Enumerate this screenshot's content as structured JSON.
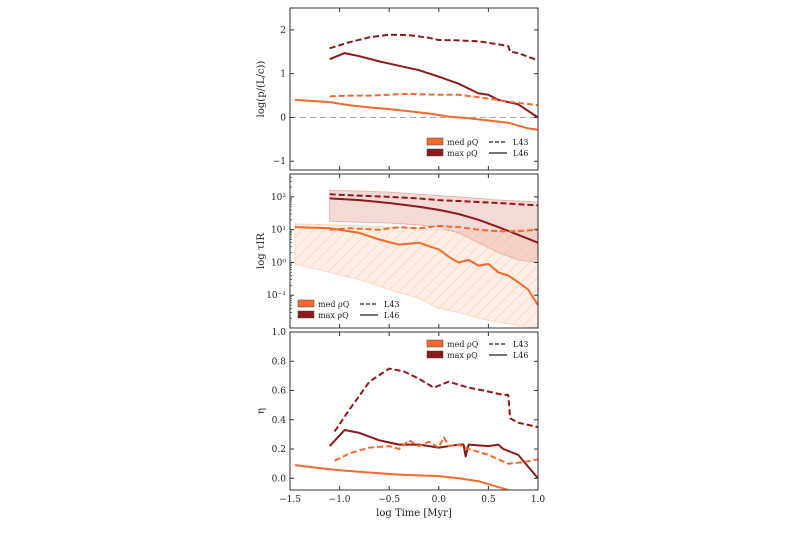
{
  "chart_data": [
    {
      "type": "line",
      "ylabel": "log(p/(L/c))",
      "xlim": [
        -1.5,
        1.0
      ],
      "ylim": [
        -1.2,
        2.5
      ],
      "y_scale": "linear",
      "yticks": [
        -1,
        0,
        1,
        2
      ],
      "reference_line": {
        "y": 0,
        "style": "dashed",
        "color": "#aaaaaa"
      },
      "legend": {
        "placement": "lower-right",
        "color_entries": [
          {
            "label": "med ρQ",
            "color": "#f46a2e"
          },
          {
            "label": "max ρQ",
            "color": "#8b1a1a"
          }
        ],
        "style_entries": [
          {
            "label": "L43",
            "style": "dashed"
          },
          {
            "label": "L46",
            "style": "solid"
          }
        ]
      },
      "series": [
        {
          "color": "#8b1a1a",
          "style": "dashed",
          "x": [
            -1.1,
            -0.9,
            -0.7,
            -0.5,
            -0.3,
            -0.1,
            0.0,
            0.2,
            0.4,
            0.6,
            0.7,
            0.72,
            0.8,
            1.0
          ],
          "y": [
            1.58,
            1.72,
            1.83,
            1.89,
            1.88,
            1.82,
            1.77,
            1.76,
            1.74,
            1.67,
            1.63,
            1.5,
            1.47,
            1.3
          ]
        },
        {
          "color": "#8b1a1a",
          "style": "solid",
          "x": [
            -1.1,
            -0.95,
            -0.8,
            -0.6,
            -0.4,
            -0.2,
            0.0,
            0.2,
            0.4,
            0.5,
            0.6,
            0.8,
            1.0
          ],
          "y": [
            1.33,
            1.47,
            1.4,
            1.28,
            1.18,
            1.08,
            0.93,
            0.77,
            0.55,
            0.52,
            0.4,
            0.3,
            0.0
          ]
        },
        {
          "color": "#f46a2e",
          "style": "dashed",
          "x": [
            -1.1,
            -0.9,
            -0.7,
            -0.5,
            -0.3,
            -0.2,
            0.0,
            0.2,
            0.4,
            0.6,
            0.7,
            1.0
          ],
          "y": [
            0.48,
            0.5,
            0.5,
            0.52,
            0.54,
            0.53,
            0.52,
            0.52,
            0.46,
            0.4,
            0.36,
            0.28
          ]
        },
        {
          "color": "#f46a2e",
          "style": "solid",
          "x": [
            -1.45,
            -1.1,
            -0.9,
            -0.7,
            -0.5,
            -0.3,
            -0.1,
            0.1,
            0.3,
            0.5,
            0.7,
            0.9,
            1.0
          ],
          "y": [
            0.4,
            0.35,
            0.28,
            0.23,
            0.19,
            0.14,
            0.09,
            0.02,
            -0.02,
            -0.07,
            -0.12,
            -0.25,
            -0.28
          ]
        }
      ]
    },
    {
      "type": "line",
      "ylabel": "log τIR",
      "xlim": [
        -1.5,
        1.0
      ],
      "ylim": [
        0.01,
        500
      ],
      "y_scale": "log",
      "yticks": [
        0.1,
        1,
        10,
        100
      ],
      "ytick_labels": [
        "10⁻¹",
        "10⁰",
        "10¹",
        "10²"
      ],
      "legend": {
        "placement": "lower-left",
        "color_entries": [
          {
            "label": "med ρQ",
            "color": "#f46a2e"
          },
          {
            "label": "max ρQ",
            "color": "#8b1a1a"
          }
        ],
        "style_entries": [
          {
            "label": "L43",
            "style": "dashed"
          },
          {
            "label": "L46",
            "style": "solid"
          }
        ]
      },
      "bands": [
        {
          "color": "#fcd9c2",
          "x": [
            -1.45,
            -1.1,
            -0.8,
            -0.5,
            -0.2,
            0.0,
            0.2,
            0.4,
            0.6,
            0.8,
            1.0
          ],
          "low": [
            0.9,
            0.5,
            0.3,
            0.15,
            0.08,
            0.04,
            0.03,
            0.02,
            0.015,
            0.012,
            0.01
          ],
          "high": [
            15,
            14,
            13,
            12,
            11,
            10,
            9,
            9,
            9,
            10,
            11
          ]
        },
        {
          "color": "#e9b5ad",
          "x": [
            -1.1,
            -0.8,
            -0.5,
            -0.2,
            0.0,
            0.2,
            0.4,
            0.6,
            0.8,
            1.0
          ],
          "low": [
            18,
            17,
            16,
            14,
            12,
            8,
            4,
            2,
            1.2,
            1.0
          ],
          "high": [
            160,
            150,
            140,
            120,
            110,
            100,
            90,
            80,
            75,
            70
          ]
        }
      ],
      "series": [
        {
          "color": "#8b1a1a",
          "style": "dashed",
          "x": [
            -1.1,
            -0.8,
            -0.5,
            -0.2,
            0.0,
            0.2,
            0.4,
            0.6,
            0.8,
            1.0
          ],
          "y": [
            120,
            110,
            100,
            90,
            80,
            75,
            70,
            65,
            60,
            55
          ]
        },
        {
          "color": "#8b1a1a",
          "style": "solid",
          "x": [
            -1.1,
            -0.8,
            -0.5,
            -0.2,
            0.0,
            0.2,
            0.4,
            0.6,
            0.8,
            1.0
          ],
          "y": [
            90,
            80,
            65,
            50,
            40,
            30,
            20,
            12,
            7,
            4
          ]
        },
        {
          "color": "#f46a2e",
          "style": "dashed",
          "x": [
            -1.1,
            -0.9,
            -0.6,
            -0.4,
            -0.2,
            0.0,
            0.2,
            0.4,
            0.6,
            0.8,
            1.0
          ],
          "y": [
            10,
            11,
            10,
            12,
            11,
            13,
            12,
            10,
            9,
            9,
            10
          ]
        },
        {
          "color": "#f46a2e",
          "style": "solid",
          "x": [
            -1.45,
            -1.1,
            -0.8,
            -0.6,
            -0.4,
            -0.2,
            0.0,
            0.1,
            0.2,
            0.3,
            0.4,
            0.5,
            0.6,
            0.7,
            0.8,
            0.9,
            1.0
          ],
          "y": [
            12,
            11,
            8,
            5,
            3.5,
            4,
            2.5,
            1.5,
            1.0,
            1.2,
            0.8,
            0.9,
            0.5,
            0.4,
            0.25,
            0.15,
            0.05
          ]
        }
      ]
    },
    {
      "type": "line",
      "ylabel": "η",
      "xlabel": "log Time [Myr]",
      "xlim": [
        -1.5,
        1.0
      ],
      "ylim": [
        -0.08,
        1.0
      ],
      "y_scale": "linear",
      "xticks": [
        -1.5,
        -1.0,
        -0.5,
        0.0,
        0.5,
        1.0
      ],
      "yticks": [
        0.0,
        0.2,
        0.4,
        0.6,
        0.8,
        1.0
      ],
      "legend": {
        "placement": "top-right",
        "color_entries": [
          {
            "label": "med ρQ",
            "color": "#f46a2e"
          },
          {
            "label": "max ρQ",
            "color": "#8b1a1a"
          }
        ],
        "style_entries": [
          {
            "label": "L43",
            "style": "dashed"
          },
          {
            "label": "L46",
            "style": "solid"
          }
        ]
      },
      "series": [
        {
          "color": "#8b1a1a",
          "style": "dashed",
          "x": [
            -1.05,
            -0.9,
            -0.7,
            -0.5,
            -0.35,
            -0.2,
            -0.05,
            0.1,
            0.2,
            0.3,
            0.45,
            0.65,
            0.7,
            0.72,
            0.8,
            1.0
          ],
          "y": [
            0.32,
            0.47,
            0.66,
            0.75,
            0.73,
            0.68,
            0.62,
            0.66,
            0.64,
            0.62,
            0.6,
            0.57,
            0.57,
            0.41,
            0.38,
            0.35
          ]
        },
        {
          "color": "#8b1a1a",
          "style": "solid",
          "x": [
            -1.1,
            -0.95,
            -0.8,
            -0.6,
            -0.4,
            -0.2,
            0.0,
            0.1,
            0.2,
            0.25,
            0.27,
            0.3,
            0.5,
            0.6,
            0.65,
            0.8,
            1.0
          ],
          "y": [
            0.22,
            0.33,
            0.31,
            0.26,
            0.23,
            0.23,
            0.21,
            0.22,
            0.23,
            0.23,
            0.15,
            0.23,
            0.22,
            0.23,
            0.2,
            0.16,
            0.0
          ]
        },
        {
          "color": "#f46a2e",
          "style": "dashed",
          "x": [
            -1.05,
            -0.9,
            -0.7,
            -0.5,
            -0.4,
            -0.3,
            -0.2,
            -0.1,
            0.0,
            0.05,
            0.1,
            0.2,
            0.3,
            0.5,
            0.7,
            0.85,
            1.0
          ],
          "y": [
            0.12,
            0.17,
            0.21,
            0.22,
            0.2,
            0.26,
            0.22,
            0.25,
            0.21,
            0.28,
            0.22,
            0.23,
            0.2,
            0.16,
            0.1,
            0.11,
            0.13
          ]
        },
        {
          "color": "#f46a2e",
          "style": "solid",
          "x": [
            -1.45,
            -1.2,
            -1.0,
            -0.8,
            -0.6,
            -0.4,
            -0.2,
            0.0,
            0.2,
            0.4,
            0.6,
            0.7
          ],
          "y": [
            0.09,
            0.07,
            0.055,
            0.045,
            0.035,
            0.025,
            0.02,
            0.015,
            0.0,
            -0.02,
            -0.06,
            -0.08
          ]
        }
      ]
    }
  ]
}
